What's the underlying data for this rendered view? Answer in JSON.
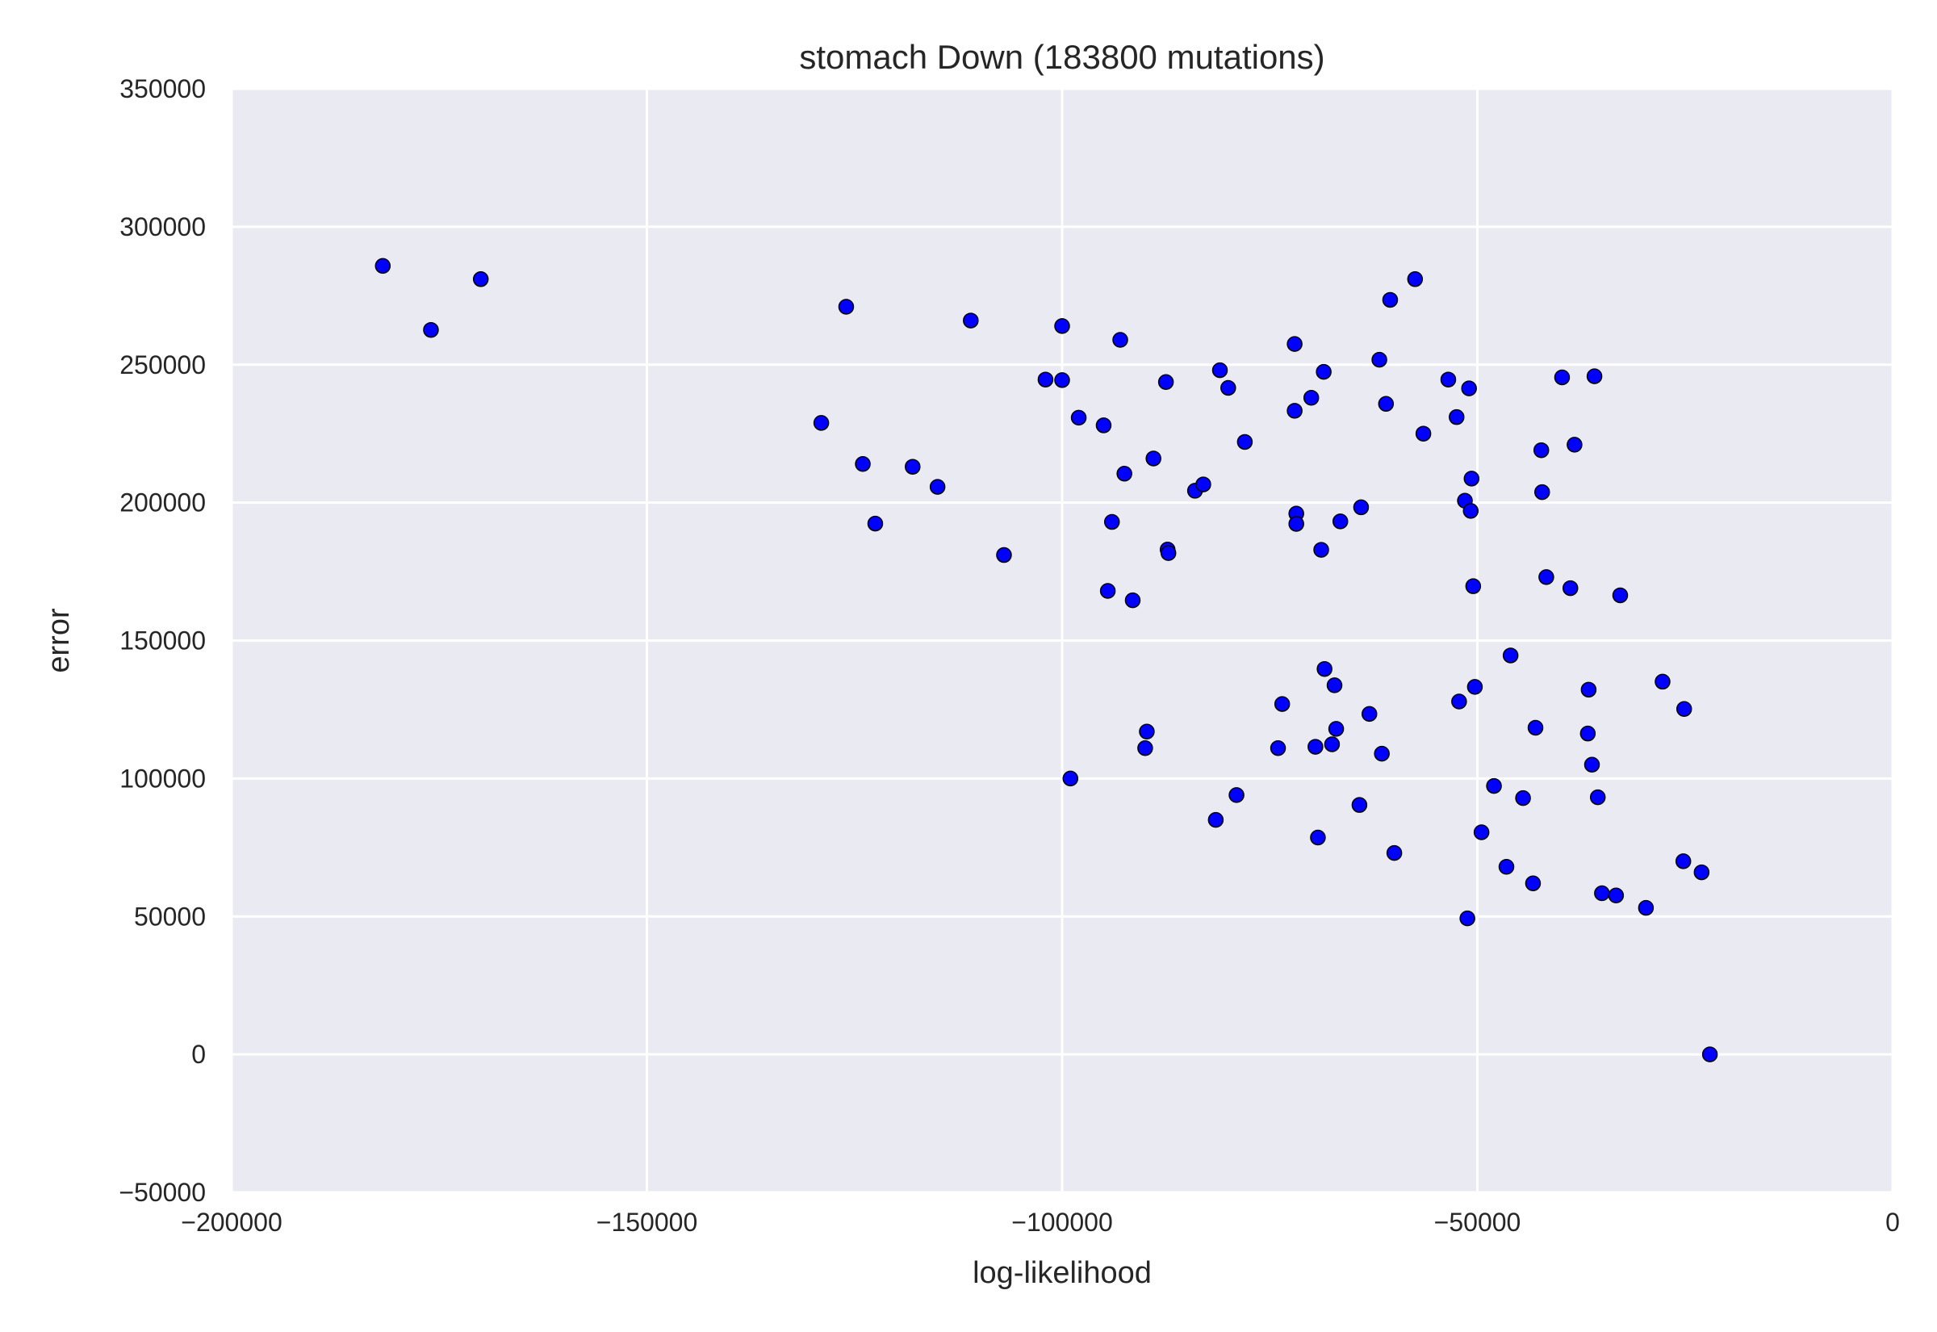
{
  "chart_data": {
    "type": "scatter",
    "title": "stomach Down (183800 mutations)",
    "xlabel": "log-likelihood",
    "ylabel": "error",
    "xlim": [
      -200000,
      0
    ],
    "ylim": [
      -50000,
      350000
    ],
    "xticks": [
      -200000,
      -150000,
      -100000,
      -50000,
      0
    ],
    "xtick_labels": [
      "−200000",
      "−150000",
      "−100000",
      "−50000",
      "0"
    ],
    "yticks": [
      -50000,
      0,
      50000,
      100000,
      150000,
      200000,
      250000,
      300000,
      350000
    ],
    "ytick_labels": [
      "−50000",
      "0",
      "50000",
      "100000",
      "150000",
      "200000",
      "250000",
      "300000",
      "350000"
    ],
    "grid": true,
    "background": "#eaeaf2",
    "grid_color": "#ffffff",
    "marker_color": "#0000ff",
    "marker_edge_color": "#000000",
    "series": [
      {
        "points": [
          [
            -181800,
            285800
          ],
          [
            -176000,
            262600
          ],
          [
            -170000,
            281000
          ],
          [
            -126000,
            271000
          ],
          [
            -129000,
            228900
          ],
          [
            -124000,
            214000
          ],
          [
            -122500,
            192400
          ],
          [
            -118000,
            213000
          ],
          [
            -115000,
            205700
          ],
          [
            -111000,
            266000
          ],
          [
            -107000,
            181000
          ],
          [
            -102000,
            244600
          ],
          [
            -100000,
            244400
          ],
          [
            -100000,
            264000
          ],
          [
            -98000,
            230800
          ],
          [
            -95000,
            228000
          ],
          [
            -94000,
            193000
          ],
          [
            -94500,
            168000
          ],
          [
            -93000,
            259000
          ],
          [
            -92500,
            210500
          ],
          [
            -91500,
            164600
          ],
          [
            -90000,
            111000
          ],
          [
            -89800,
            117000
          ],
          [
            -89000,
            216000
          ],
          [
            -87500,
            243700
          ],
          [
            -87300,
            183000
          ],
          [
            -87200,
            181700
          ],
          [
            -99000,
            100000
          ],
          [
            -84000,
            204300
          ],
          [
            -83000,
            206600
          ],
          [
            -81500,
            85000
          ],
          [
            -81000,
            248000
          ],
          [
            -80000,
            241600
          ],
          [
            -79000,
            94000
          ],
          [
            -78000,
            222000
          ],
          [
            -74000,
            111000
          ],
          [
            -73500,
            127000
          ],
          [
            -72000,
            257500
          ],
          [
            -72000,
            233300
          ],
          [
            -71800,
            196000
          ],
          [
            -71800,
            192300
          ],
          [
            -70000,
            238000
          ],
          [
            -69500,
            111500
          ],
          [
            -69200,
            78600
          ],
          [
            -68800,
            182900
          ],
          [
            -68500,
            247400
          ],
          [
            -68400,
            139700
          ],
          [
            -67500,
            112400
          ],
          [
            -67200,
            133800
          ],
          [
            -67000,
            118000
          ],
          [
            -66500,
            193200
          ],
          [
            -64200,
            90400
          ],
          [
            -64000,
            198300
          ],
          [
            -63000,
            123400
          ],
          [
            -61800,
            251800
          ],
          [
            -61500,
            109000
          ],
          [
            -61000,
            235800
          ],
          [
            -60500,
            273500
          ],
          [
            -60000,
            73000
          ],
          [
            -57500,
            281000
          ],
          [
            -56500,
            225000
          ],
          [
            -53500,
            244600
          ],
          [
            -52500,
            231000
          ],
          [
            -52200,
            127900
          ],
          [
            -51500,
            200700
          ],
          [
            -51200,
            49300
          ],
          [
            -51000,
            241400
          ],
          [
            -50800,
            197000
          ],
          [
            -50700,
            208700
          ],
          [
            -50500,
            169700
          ],
          [
            -50300,
            133200
          ],
          [
            -49500,
            80500
          ],
          [
            -48000,
            97300
          ],
          [
            -46500,
            68000
          ],
          [
            -46000,
            144600
          ],
          [
            -44500,
            92900
          ],
          [
            -43300,
            62000
          ],
          [
            -43000,
            118400
          ],
          [
            -42300,
            219000
          ],
          [
            -42200,
            203800
          ],
          [
            -41700,
            173000
          ],
          [
            -39800,
            245400
          ],
          [
            -38800,
            169000
          ],
          [
            -38300,
            221000
          ],
          [
            -36700,
            116300
          ],
          [
            -36600,
            132200
          ],
          [
            -36200,
            105000
          ],
          [
            -35900,
            245800
          ],
          [
            -35500,
            93200
          ],
          [
            -35000,
            58400
          ],
          [
            -33300,
            57600
          ],
          [
            -32800,
            166400
          ],
          [
            -29700,
            53100
          ],
          [
            -27700,
            135100
          ],
          [
            -25200,
            70000
          ],
          [
            -25100,
            125200
          ],
          [
            -23000,
            66000
          ],
          [
            -22000,
            0
          ]
        ]
      }
    ]
  }
}
